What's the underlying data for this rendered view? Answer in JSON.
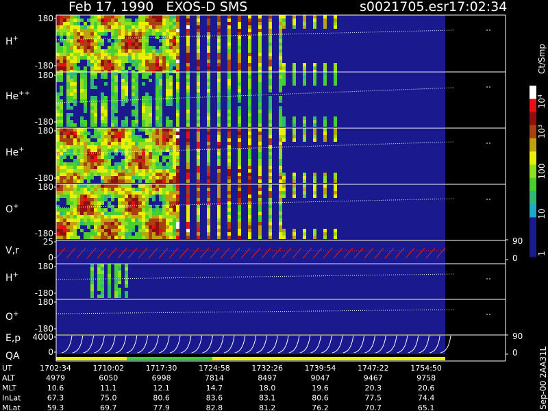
{
  "header": {
    "title": "Feb 17, 1990   EXOS-D SMS",
    "file": "s0021705.esr",
    "time": "17:02:34"
  },
  "panels": [
    {
      "label": "H",
      "sup": "+",
      "ticks": [
        "180",
        "-180"
      ]
    },
    {
      "label": "He",
      "sup": "++",
      "ticks": [
        "180",
        "-180"
      ]
    },
    {
      "label": "He",
      "sup": "+",
      "ticks": [
        "180",
        "-180"
      ]
    },
    {
      "label": "O",
      "sup": "+",
      "ticks": [
        "180",
        "-180"
      ]
    },
    {
      "label": "V,r",
      "ticks": [
        "25",
        "0"
      ],
      "right_ticks": [
        "90",
        "0"
      ]
    },
    {
      "label": "H",
      "sup": "+",
      "ticks": [
        "180",
        "-180"
      ]
    },
    {
      "label": "O",
      "sup": "+",
      "ticks": [
        "180",
        "-180"
      ]
    },
    {
      "label": "E,p",
      "ticks": [
        "4000",
        "0"
      ],
      "right_ticks": [
        "90",
        "0"
      ]
    }
  ],
  "qa_label": "QA",
  "colorbar": {
    "unit": "Ct/Smp",
    "labels": [
      {
        "base": "10",
        "exp": "4"
      },
      {
        "base": "10",
        "exp": "3"
      },
      {
        "text": "100"
      },
      {
        "text": "10"
      },
      {
        "text": "1"
      }
    ]
  },
  "footer": {
    "rows": [
      {
        "label": "UT",
        "values": [
          "1702:34",
          "1710:02",
          "1717:30",
          "1724:58",
          "1732:26",
          "1739:54",
          "1747:22",
          "1754:50"
        ]
      },
      {
        "label": "ALT",
        "values": [
          "4979",
          "6050",
          "6998",
          "7814",
          "8497",
          "9047",
          "9467",
          "9758"
        ]
      },
      {
        "label": "MLT",
        "values": [
          "10.6",
          "11.1",
          "12.1",
          "14.7",
          "18.0",
          "19.6",
          "20.3",
          "20.6"
        ]
      },
      {
        "label": "InLat",
        "values": [
          "67.3",
          "75.0",
          "80.6",
          "83.6",
          "83.1",
          "80.6",
          "77.5",
          "74.4"
        ]
      },
      {
        "label": "MLat",
        "values": [
          "59.3",
          "69.7",
          "77.9",
          "82.8",
          "81.2",
          "76.2",
          "70.7",
          "65.1"
        ]
      }
    ]
  },
  "version": "Sep-00  2AA31L"
}
